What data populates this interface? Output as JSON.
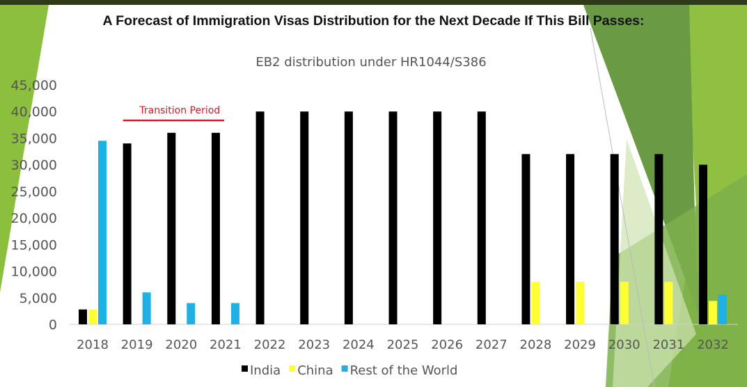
{
  "slide_title": "A Forecast of Immigration Visas Distribution for the Next Decade If This Bill Passes:",
  "colors": {
    "top_bar": "#2e3a18",
    "slide_green": "#8dbf3f",
    "slide_dark_green": "#5f8f3a"
  },
  "chart_data": {
    "type": "bar",
    "title": "EB2 distribution under HR1044/S386",
    "categories": [
      "2018",
      "2019",
      "2020",
      "2021",
      "2022",
      "2023",
      "2024",
      "2025",
      "2026",
      "2027",
      "2028",
      "2029",
      "2030",
      "2031",
      "2032"
    ],
    "series": [
      {
        "name": "India",
        "color": "#000000",
        "values": [
          2800,
          34000,
          36000,
          36000,
          40000,
          40000,
          40000,
          40000,
          40000,
          40000,
          32000,
          32000,
          32000,
          32000,
          30000
        ]
      },
      {
        "name": "China",
        "color": "#ffff33",
        "values": [
          2800,
          0,
          0,
          0,
          0,
          0,
          0,
          0,
          0,
          0,
          8000,
          8000,
          8000,
          8000,
          4400
        ]
      },
      {
        "name": "Rest of the World",
        "color": "#1fb0e6",
        "values": [
          34500,
          6000,
          4000,
          4000,
          0,
          0,
          0,
          0,
          0,
          0,
          0,
          0,
          0,
          0,
          5600
        ]
      }
    ],
    "ylim": [
      0,
      45000
    ],
    "yticks": [
      0,
      5000,
      10000,
      15000,
      20000,
      25000,
      30000,
      35000,
      40000,
      45000
    ],
    "ytick_labels": [
      "0",
      "5,000",
      "10,000",
      "15,000",
      "20,000",
      "25,000",
      "30,000",
      "35,000",
      "40,000",
      "45,000"
    ],
    "grid": false,
    "legend_position": "bottom",
    "annotation": {
      "text": "Transition Period",
      "color": "#d01c2a",
      "span": [
        "2019",
        "2021"
      ]
    }
  }
}
